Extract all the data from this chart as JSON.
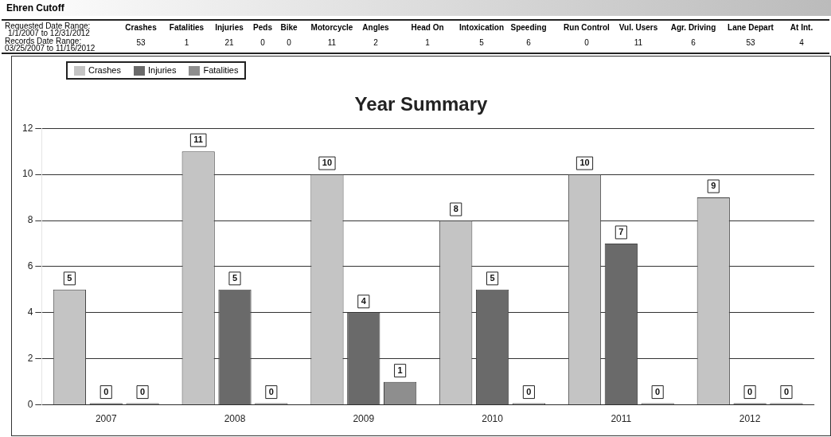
{
  "chart_data": {
    "type": "bar",
    "title": "Year Summary",
    "categories": [
      "2007",
      "2008",
      "2009",
      "2010",
      "2011",
      "2012"
    ],
    "series": [
      {
        "name": "Crashes",
        "color": "#c4c4c4",
        "values": [
          5,
          11,
          10,
          8,
          10,
          9
        ]
      },
      {
        "name": "Injuries",
        "color": "#6a6a6a",
        "values": [
          0,
          5,
          4,
          5,
          7,
          0
        ]
      },
      {
        "name": "Fatalities",
        "color": "#8e8e8e",
        "values": [
          0,
          0,
          1,
          0,
          0,
          0
        ]
      }
    ],
    "ylim": [
      0,
      12
    ],
    "yticks": [
      0,
      2,
      4,
      6,
      8,
      10,
      12
    ],
    "grid": "y",
    "legend": "top left",
    "data_labels": true,
    "annotations": [
      "Ehren Cutoff",
      "Requested Date Range:",
      "1/1/2007 to 12/31/2012",
      "Records Date Range:",
      "03/25/2007  to  11/16/2012",
      "Crashes",
      "Fatalities",
      "Injuries",
      "Peds",
      "Bike",
      "Motorcycle",
      "Angles",
      "Head On",
      "Intoxication",
      "Speeding",
      "Run Control",
      "Vul. Users",
      "Agr. Driving",
      "Lane Depart",
      "At Int.",
      "53",
      "1",
      "21",
      "0",
      "0",
      "11",
      "2",
      "1",
      "5",
      "6",
      "0",
      "11",
      "6",
      "53",
      "4"
    ]
  }
}
